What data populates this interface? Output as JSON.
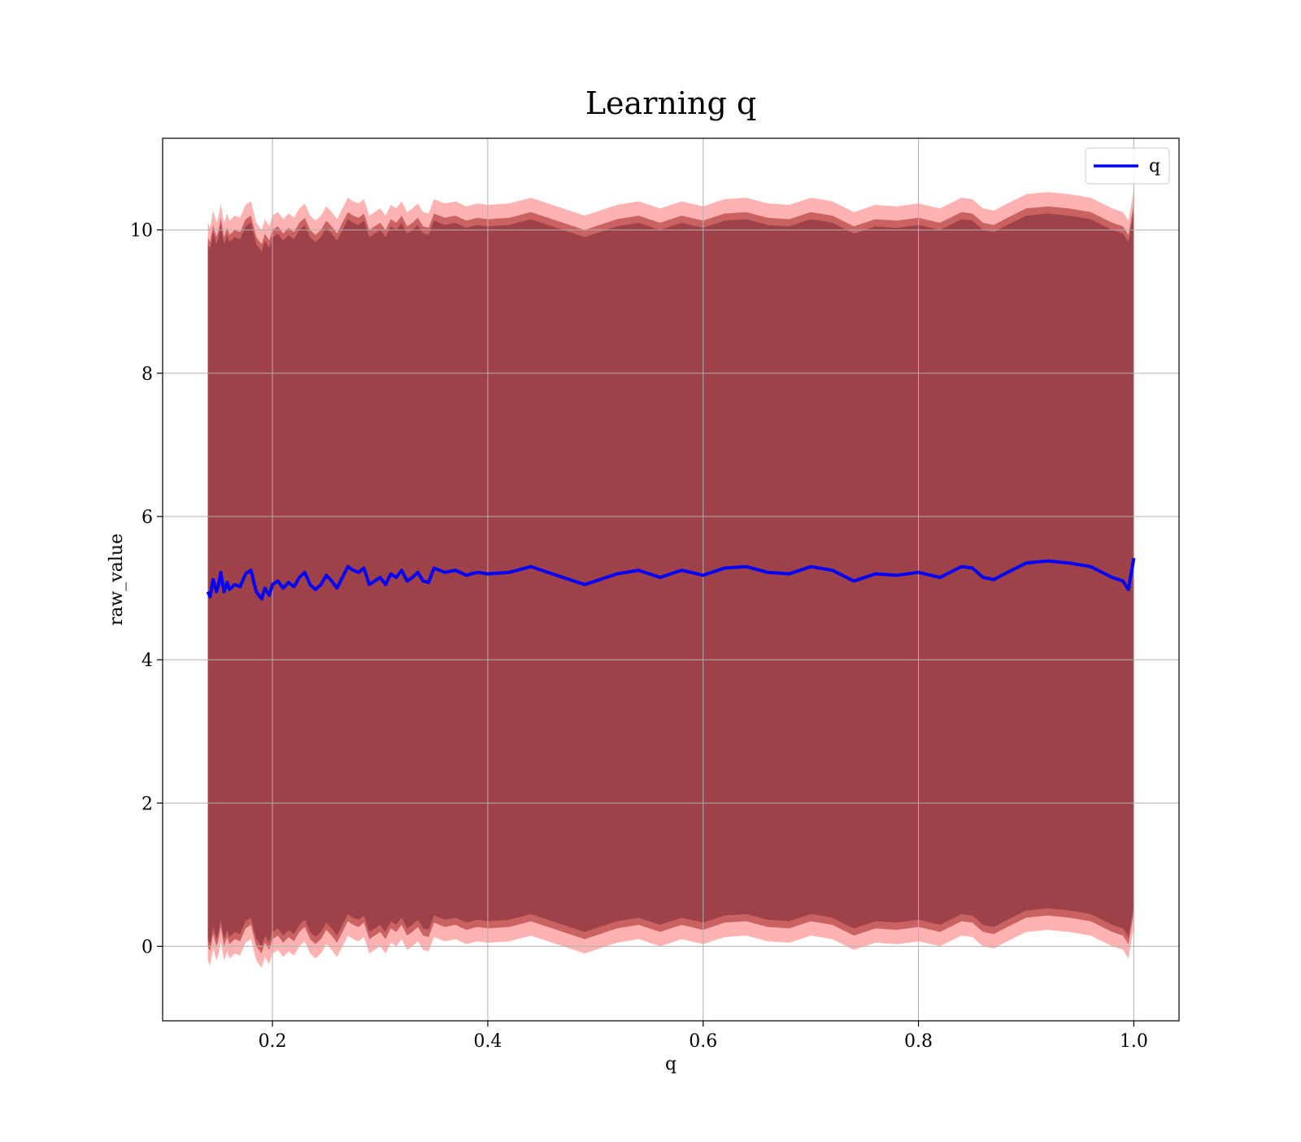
{
  "chart_data": {
    "type": "line",
    "title": "Learning q",
    "xlabel": "q",
    "ylabel": "raw_value",
    "xlim": [
      0.098,
      1.042
    ],
    "ylim": [
      -1.04,
      11.28
    ],
    "x_ticks": [
      0.2,
      0.4,
      0.6,
      0.8,
      1.0
    ],
    "x_tick_labels": [
      "0.2",
      "0.4",
      "0.6",
      "0.8",
      "1.0"
    ],
    "y_ticks": [
      0,
      2,
      4,
      6,
      8,
      10
    ],
    "y_tick_labels": [
      "0",
      "2",
      "4",
      "6",
      "8",
      "10"
    ],
    "grid": true,
    "legend": {
      "position": "top-right",
      "entries": [
        "q"
      ]
    },
    "colors": {
      "line": "#0000ff",
      "band_outer": "#ff0000",
      "band_inner": "#8b0000",
      "grid": "#b0b0b0"
    },
    "series": [
      {
        "name": "q",
        "x": [
          0.14,
          0.142,
          0.145,
          0.148,
          0.15,
          0.152,
          0.155,
          0.158,
          0.16,
          0.165,
          0.17,
          0.175,
          0.18,
          0.185,
          0.19,
          0.193,
          0.197,
          0.2,
          0.205,
          0.21,
          0.215,
          0.22,
          0.225,
          0.23,
          0.235,
          0.24,
          0.245,
          0.25,
          0.255,
          0.26,
          0.265,
          0.27,
          0.275,
          0.28,
          0.285,
          0.29,
          0.295,
          0.3,
          0.305,
          0.31,
          0.315,
          0.32,
          0.325,
          0.33,
          0.335,
          0.34,
          0.345,
          0.35,
          0.36,
          0.37,
          0.38,
          0.39,
          0.4,
          0.42,
          0.44,
          0.46,
          0.48,
          0.49,
          0.5,
          0.52,
          0.54,
          0.56,
          0.58,
          0.6,
          0.62,
          0.64,
          0.66,
          0.68,
          0.7,
          0.72,
          0.74,
          0.76,
          0.78,
          0.8,
          0.82,
          0.84,
          0.85,
          0.86,
          0.87,
          0.88,
          0.9,
          0.92,
          0.94,
          0.96,
          0.98,
          0.99,
          0.995,
          1.0
        ],
        "y": [
          4.95,
          4.88,
          5.12,
          4.95,
          5.05,
          5.22,
          4.95,
          5.08,
          4.98,
          5.05,
          5.02,
          5.2,
          5.25,
          4.95,
          4.85,
          5.0,
          4.9,
          5.05,
          5.1,
          5.0,
          5.08,
          5.02,
          5.15,
          5.22,
          5.05,
          4.98,
          5.05,
          5.18,
          5.1,
          5.0,
          5.15,
          5.3,
          5.25,
          5.22,
          5.28,
          5.05,
          5.1,
          5.15,
          5.05,
          5.2,
          5.15,
          5.25,
          5.1,
          5.15,
          5.22,
          5.1,
          5.08,
          5.28,
          5.22,
          5.25,
          5.18,
          5.22,
          5.2,
          5.22,
          5.3,
          5.2,
          5.1,
          5.05,
          5.1,
          5.2,
          5.25,
          5.15,
          5.25,
          5.18,
          5.28,
          5.3,
          5.22,
          5.2,
          5.3,
          5.25,
          5.1,
          5.2,
          5.18,
          5.22,
          5.15,
          5.3,
          5.28,
          5.15,
          5.12,
          5.2,
          5.35,
          5.38,
          5.35,
          5.3,
          5.15,
          5.1,
          4.98,
          5.42
        ]
      }
    ],
    "bands": [
      {
        "upper_offset": 5.15,
        "lower_offset": 5.15,
        "color": "#ff0000",
        "opacity": 0.3
      },
      {
        "upper_offset": 4.95,
        "lower_offset": 4.95,
        "color": "#8b0000",
        "opacity": 0.45
      },
      {
        "upper_offset": 4.85,
        "lower_offset": 4.85,
        "color": "#6a1a2a",
        "opacity": 0.45
      }
    ]
  }
}
